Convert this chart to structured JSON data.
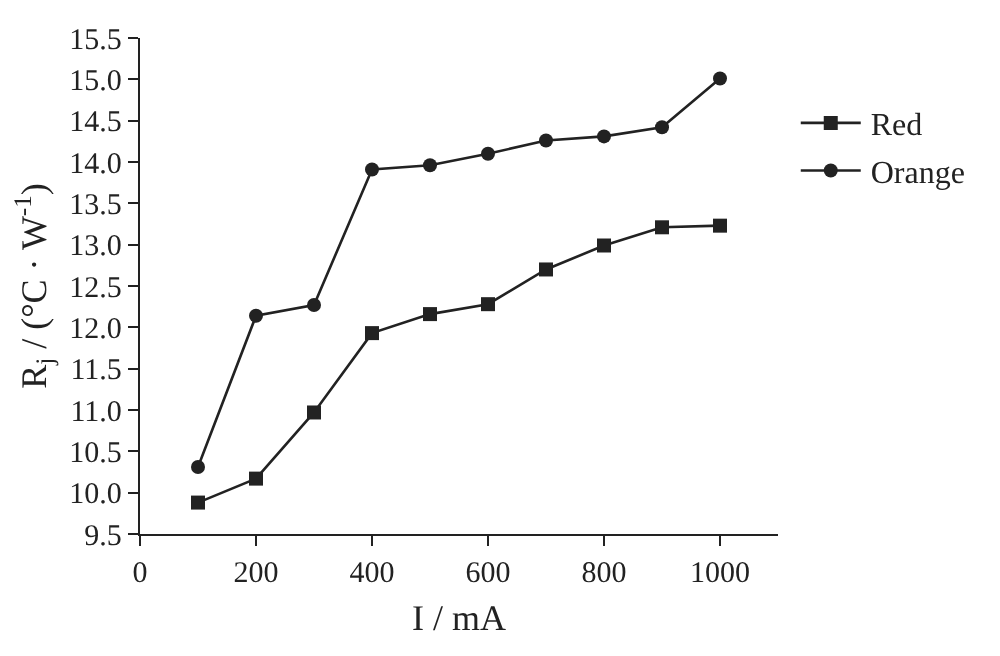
{
  "chart_data": {
    "type": "line",
    "xlabel": "I / mA",
    "ylabel": "R$_{j}$ / (°C · W$^{-1}$)",
    "x": [
      100,
      200,
      300,
      400,
      500,
      600,
      700,
      800,
      900,
      1000
    ],
    "series": [
      {
        "name": "Red",
        "color": "#222222",
        "marker": "square",
        "values": [
          9.88,
          10.17,
          10.97,
          11.93,
          12.16,
          12.28,
          12.7,
          12.99,
          13.21,
          13.23
        ]
      },
      {
        "name": "Orange",
        "color": "#222222",
        "marker": "circle",
        "values": [
          10.31,
          12.14,
          12.27,
          13.91,
          13.96,
          14.1,
          14.26,
          14.31,
          14.42,
          15.01
        ]
      }
    ],
    "xlim": [
      0,
      1100
    ],
    "xticks": [
      0,
      200,
      400,
      600,
      800,
      1000
    ],
    "ylim": [
      9.5,
      15.5
    ],
    "yticks": [
      9.5,
      {
        "value": 10,
        "label": "10.0"
      },
      10.5,
      {
        "value": 11,
        "label": "11.0"
      },
      11.5,
      {
        "value": 12,
        "label": "12.0"
      },
      12.5,
      {
        "value": 13,
        "label": "13.0"
      },
      13.5,
      {
        "value": 14,
        "label": "14.0"
      },
      14.5,
      {
        "value": 15,
        "label": "15.0"
      },
      15.5
    ],
    "grid": false,
    "legend": "right",
    "line_style": "solid"
  }
}
